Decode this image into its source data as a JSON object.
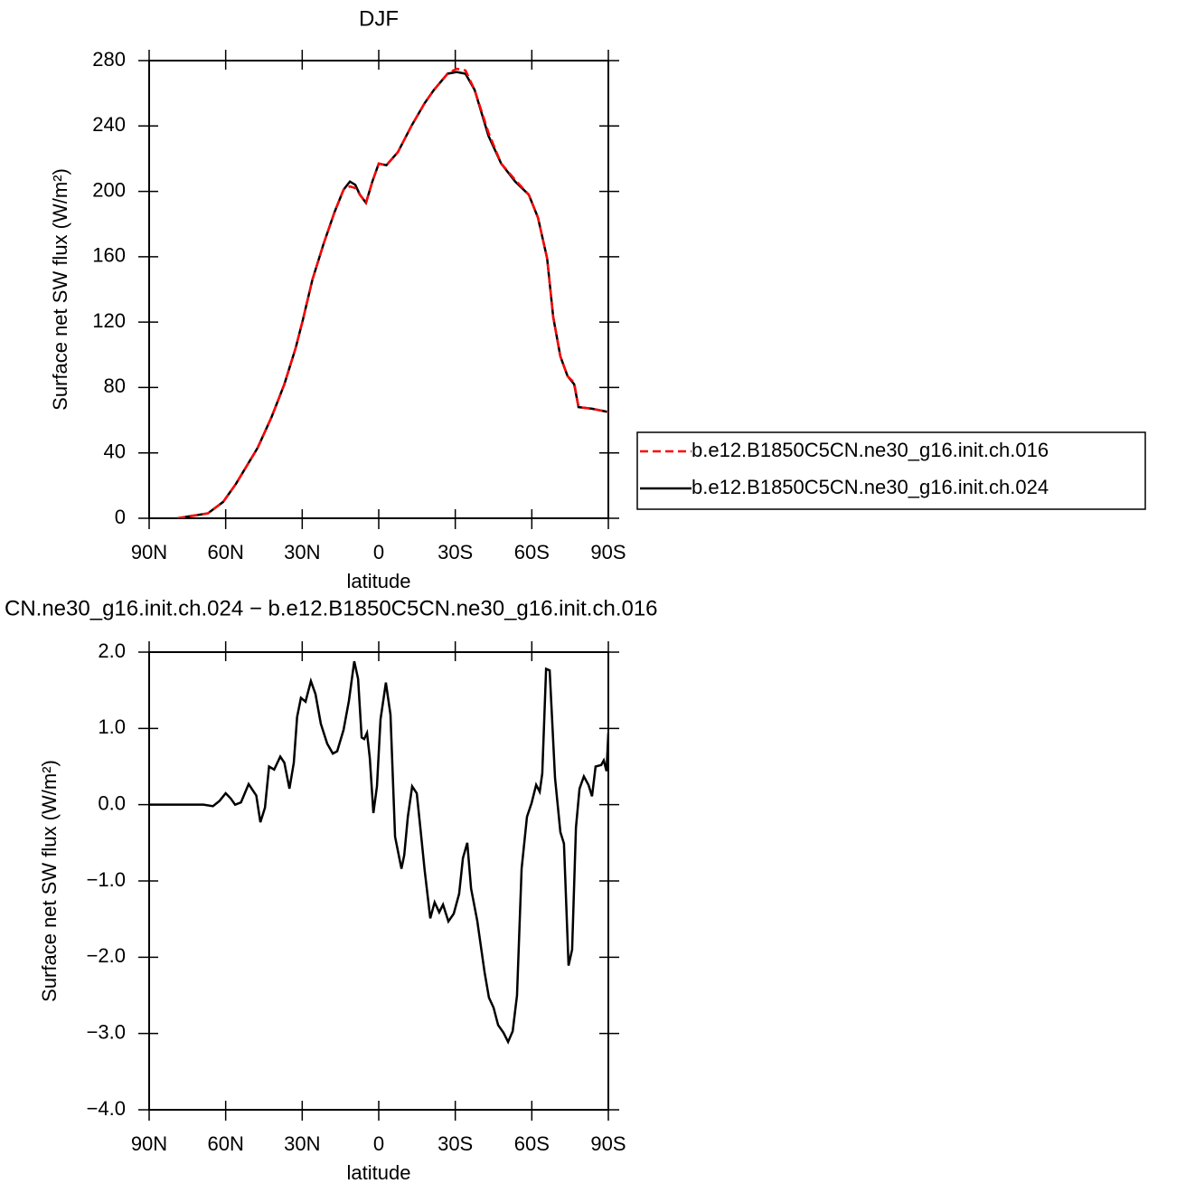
{
  "chart_data": [
    {
      "type": "line",
      "title": "DJF",
      "xlabel": "latitude",
      "ylabel": "Surface net SW flux (W/m²)",
      "x": [
        79,
        67,
        61,
        56,
        47.5,
        42,
        37,
        32.6,
        29.8,
        26,
        21.6,
        17.4,
        13.8,
        11.3,
        9.2,
        7.4,
        5,
        2.5,
        0,
        -3,
        -7.5,
        -12.8,
        -18,
        -21.6,
        -27,
        -30.5,
        -34,
        -37.6,
        -43,
        -48,
        -53.5,
        -58.8,
        -62.4,
        -66,
        -68.4,
        -71.2,
        -74,
        -76.6,
        -78.3,
        -83.6,
        -90
      ],
      "series": [
        {
          "name": "b.e12.B1850C5CN.ne30_g16.init.ch.016",
          "color": "#ff0000",
          "linestyle": "dashed",
          "values": [
            0,
            3,
            10,
            21,
            43,
            62,
            82,
            104,
            121,
            146,
            168,
            187,
            201,
            203,
            202,
            198,
            193,
            206,
            217,
            216,
            224,
            240,
            254,
            262,
            272,
            275,
            274,
            262,
            236,
            217,
            207,
            198,
            184,
            159,
            123,
            99,
            87,
            83,
            68,
            67,
            65
          ]
        },
        {
          "name": "b.e12.B1850C5CN.ne30_g16.init.ch.024",
          "color": "#000000",
          "linestyle": "solid",
          "values": [
            0,
            3,
            10,
            21,
            43,
            62,
            82,
            104,
            121,
            146,
            168,
            187,
            201,
            206,
            204,
            198,
            193,
            206,
            217,
            216,
            224,
            240,
            254,
            262,
            272,
            273,
            272,
            262,
            234,
            217,
            206,
            198,
            184,
            159,
            123,
            99,
            87,
            82,
            68,
            67,
            65
          ]
        }
      ],
      "xlim": [
        90,
        -90
      ],
      "xticks": [
        {
          "value": 90,
          "label": "90N"
        },
        {
          "value": 60,
          "label": "60N"
        },
        {
          "value": 30,
          "label": "30N"
        },
        0,
        {
          "value": -30,
          "label": "30S"
        },
        {
          "value": -60,
          "label": "60S"
        },
        {
          "value": -90,
          "label": "90S"
        }
      ],
      "ylim": [
        0,
        280
      ],
      "yticks": [
        0,
        40,
        80,
        120,
        160,
        200,
        240,
        280
      ],
      "legend": "right"
    },
    {
      "type": "line",
      "title": "CN.ne30_g16.init.ch.024 − b.e12.B1850C5CN.ne30_g16.init.ch.016",
      "xlabel": "latitude",
      "ylabel": "Surface net SW flux (W/m²)",
      "color": "#000000",
      "x": [
        90,
        68.7,
        65,
        62.4,
        60,
        58,
        56.3,
        54,
        51,
        48,
        46.4,
        44.6,
        43,
        41,
        38.6,
        37,
        35,
        33.3,
        32,
        30.5,
        28.7,
        26.6,
        24.8,
        22.7,
        20.2,
        18,
        16.3,
        13.8,
        11.7,
        9.6,
        8.1,
        6.7,
        5.7,
        4.6,
        3.5,
        2.1,
        0.7,
        -0.7,
        -2.8,
        -4.6,
        -6.4,
        -8.9,
        -10,
        -11.4,
        -13.1,
        -14.9,
        -16.3,
        -18,
        -20.2,
        -21.9,
        -23.7,
        -25.2,
        -27.3,
        -29.4,
        -31.5,
        -33,
        -34.7,
        -36.2,
        -38.6,
        -41.5,
        -43.2,
        -45,
        -46.8,
        -48.9,
        -50.7,
        -52.5,
        -54.2,
        -56,
        -58.1,
        -59.9,
        -61.7,
        -63.1,
        -64.1,
        -65.6,
        -67,
        -69.1,
        -71.2,
        -72.6,
        -74.4,
        -75.8,
        -77.3,
        -78.7,
        -80.4,
        -82.2,
        -83.6,
        -85,
        -87.2,
        -88.2,
        -89.3,
        -90
      ],
      "values": [
        0,
        0,
        -0.02,
        0.05,
        0.15,
        0.08,
        0,
        0.03,
        0.27,
        0.12,
        -0.23,
        -0.04,
        0.5,
        0.46,
        0.63,
        0.55,
        0.21,
        0.55,
        1.15,
        1.4,
        1.35,
        1.62,
        1.45,
        1.06,
        0.8,
        0.67,
        0.7,
        0.98,
        1.36,
        1.88,
        1.65,
        0.88,
        0.86,
        0.94,
        0.61,
        -0.11,
        0.24,
        1.12,
        1.6,
        1.18,
        -0.42,
        -0.84,
        -0.66,
        -0.16,
        0.24,
        0.15,
        -0.3,
        -0.86,
        -1.49,
        -1.28,
        -1.41,
        -1.31,
        -1.53,
        -1.43,
        -1.17,
        -0.7,
        -0.5,
        -1.1,
        -1.52,
        -2.2,
        -2.53,
        -2.66,
        -2.89,
        -2.99,
        -3.11,
        -2.97,
        -2.5,
        -0.84,
        -0.16,
        0.02,
        0.26,
        0.17,
        0.41,
        1.78,
        1.76,
        0.35,
        -0.36,
        -0.51,
        -2.11,
        -1.9,
        -0.3,
        0.21,
        0.37,
        0.26,
        0.11,
        0.5,
        0.52,
        0.58,
        0.44,
        0.94
      ],
      "xlim": [
        90,
        -90
      ],
      "xticks": [
        {
          "value": 90,
          "label": "90N"
        },
        {
          "value": 60,
          "label": "60N"
        },
        {
          "value": 30,
          "label": "30N"
        },
        0,
        {
          "value": -30,
          "label": "30S"
        },
        {
          "value": -60,
          "label": "60S"
        },
        {
          "value": -90,
          "label": "90S"
        }
      ],
      "ylim": [
        -4,
        2
      ],
      "yticks": [
        {
          "value": -4,
          "label": "−4.0"
        },
        {
          "value": -3,
          "label": "−3.0"
        },
        {
          "value": -2,
          "label": "−2.0"
        },
        {
          "value": -1,
          "label": "−1.0"
        },
        {
          "value": 0,
          "label": "0.0"
        },
        {
          "value": 1,
          "label": "1.0"
        },
        {
          "value": 2,
          "label": "2.0"
        }
      ]
    }
  ]
}
